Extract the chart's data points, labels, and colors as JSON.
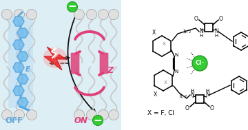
{
  "background_left": "#deeef5",
  "background_right": "#ffffff",
  "membrane_head_color": "#e0e0e0",
  "membrane_head_edge": "#aaaaaa",
  "membrane_tail_color": "#c8c8c8",
  "blue_color": "#5ba8e0",
  "blue_fill": "#7ac0ee",
  "pink_color": "#e0407a",
  "pink_fill": "#e8608a",
  "red_color": "#dd2020",
  "red_fill": "#ee3333",
  "green_color": "#33cc33",
  "green_edge": "#229922",
  "off_label_color": "#5ba8e0",
  "on_label_color": "#e0407a",
  "black": "#111111",
  "gray": "#888888",
  "light_blue_fill": "#a8d4f0",
  "off_text": "OFF",
  "on_text": "ON",
  "e_text": "E",
  "z_text": "Z",
  "x_label": "X = F, Cl",
  "cl_text": "Cl⁻"
}
